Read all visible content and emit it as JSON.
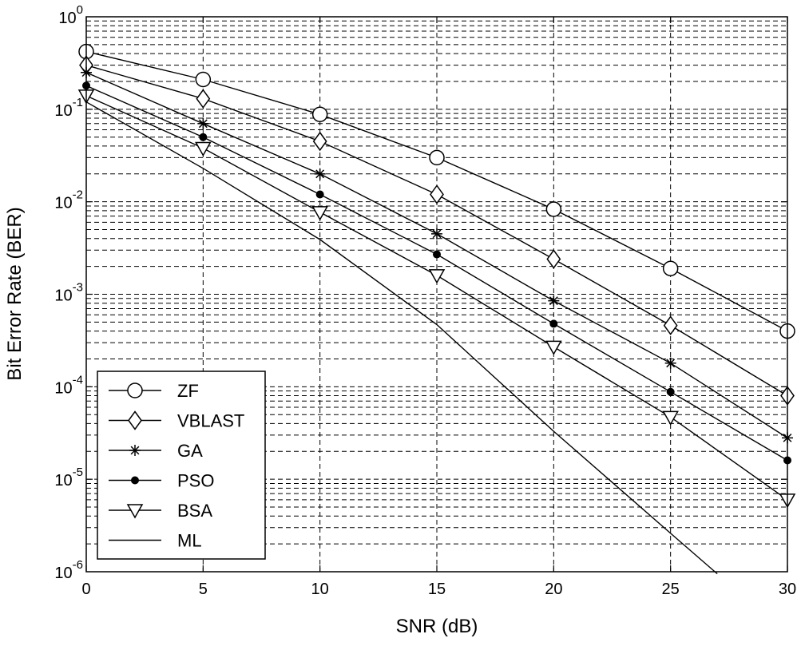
{
  "chart_data": {
    "type": "line",
    "title": "",
    "xlabel": "SNR (dB)",
    "ylabel": "Bit Error Rate (BER)",
    "xlim": [
      0,
      30
    ],
    "ylim": [
      1e-06,
      1
    ],
    "yscale": "log",
    "grid": true,
    "legend_position": "bottom-left",
    "x_ticks": [
      "0",
      "5",
      "10",
      "15",
      "20",
      "25",
      "30"
    ],
    "y_ticks": [
      {
        "base": "10",
        "exp": "0"
      },
      {
        "base": "10",
        "exp": "-1"
      },
      {
        "base": "10",
        "exp": "-2"
      },
      {
        "base": "10",
        "exp": "-3"
      },
      {
        "base": "10",
        "exp": "-4"
      },
      {
        "base": "10",
        "exp": "-5"
      },
      {
        "base": "10",
        "exp": "-6"
      }
    ],
    "series": [
      {
        "name": "ZF",
        "marker": "circle",
        "x": [
          0,
          5,
          10,
          15,
          20,
          25,
          30
        ],
        "values": [
          0.42,
          0.21,
          0.088,
          0.03,
          0.0083,
          0.0019,
          0.0004
        ]
      },
      {
        "name": "VBLAST",
        "marker": "diamond",
        "x": [
          0,
          5,
          10,
          15,
          20,
          25,
          30
        ],
        "values": [
          0.3,
          0.13,
          0.045,
          0.012,
          0.0024,
          0.00046,
          8e-05
        ]
      },
      {
        "name": "GA",
        "marker": "star",
        "x": [
          0,
          5,
          10,
          15,
          20,
          25,
          30
        ],
        "values": [
          0.25,
          0.07,
          0.02,
          0.0045,
          0.00085,
          0.00018,
          2.8e-05
        ]
      },
      {
        "name": "PSO",
        "marker": "dot",
        "x": [
          0,
          5,
          10,
          15,
          20,
          25,
          30
        ],
        "values": [
          0.18,
          0.05,
          0.012,
          0.0027,
          0.00048,
          8.8e-05,
          1.6e-05
        ]
      },
      {
        "name": "BSA",
        "marker": "triangle-down",
        "x": [
          0,
          5,
          10,
          15,
          20,
          25,
          30
        ],
        "values": [
          0.14,
          0.038,
          0.0077,
          0.0016,
          0.00027,
          4.7e-05,
          6e-06
        ]
      },
      {
        "name": "ML",
        "marker": "none",
        "x": [
          0,
          5,
          10,
          15,
          20,
          25,
          27
        ],
        "values": [
          0.12,
          0.023,
          0.0039,
          0.00047,
          3.3e-05,
          2.6e-06,
          9.5e-07
        ]
      }
    ]
  }
}
